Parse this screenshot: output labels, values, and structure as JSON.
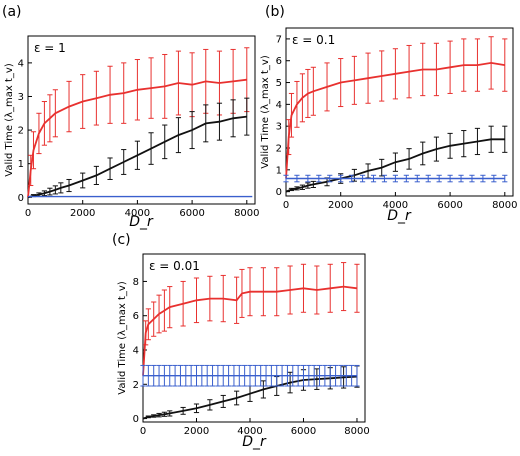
{
  "chart_data": [
    {
      "panel_label": "(a)",
      "type": "line",
      "annotation": "ε = 1",
      "xlabel": "D_r",
      "ylabel": "Valid Time (λ_max t_v)",
      "xlim": [
        0,
        8300
      ],
      "ylim": [
        -0.2,
        4.8
      ],
      "xticks": [
        0,
        2000,
        4000,
        6000,
        8000
      ],
      "yticks": [
        0,
        1,
        2,
        3,
        4
      ],
      "series": [
        {
          "color": "#e8312f",
          "x": [
            0,
            100,
            200,
            400,
            600,
            800,
            1000,
            1500,
            2000,
            2500,
            3000,
            3500,
            4000,
            4500,
            5000,
            5500,
            6000,
            6500,
            7000,
            7500,
            8000
          ],
          "y": [
            0,
            0.8,
            1.4,
            1.9,
            2.2,
            2.35,
            2.5,
            2.7,
            2.85,
            2.95,
            3.05,
            3.1,
            3.2,
            3.25,
            3.3,
            3.4,
            3.35,
            3.45,
            3.4,
            3.45,
            3.5
          ],
          "err": [
            0,
            0.45,
            0.55,
            0.6,
            0.65,
            0.7,
            0.7,
            0.75,
            0.8,
            0.8,
            0.85,
            0.9,
            0.9,
            0.9,
            0.95,
            0.95,
            0.95,
            0.95,
            0.95,
            0.95,
            0.95
          ]
        },
        {
          "color": "#111111",
          "x": [
            0,
            200,
            400,
            600,
            800,
            1000,
            1200,
            1500,
            2000,
            2500,
            3000,
            3500,
            4000,
            4500,
            5000,
            5500,
            6000,
            6500,
            7000,
            7500,
            8000
          ],
          "y": [
            0,
            0.05,
            0.08,
            0.12,
            0.17,
            0.22,
            0.28,
            0.35,
            0.5,
            0.65,
            0.85,
            1.05,
            1.25,
            1.45,
            1.65,
            1.85,
            2.0,
            2.2,
            2.25,
            2.35,
            2.4
          ],
          "err": [
            0,
            0.03,
            0.05,
            0.07,
            0.1,
            0.12,
            0.15,
            0.18,
            0.22,
            0.27,
            0.32,
            0.37,
            0.42,
            0.47,
            0.5,
            0.52,
            0.55,
            0.55,
            0.55,
            0.55,
            0.55
          ]
        },
        {
          "color": "#3a5fcd",
          "x": [
            0,
            8200
          ],
          "y": [
            0.02,
            0.02
          ],
          "err": [
            0,
            0
          ]
        }
      ]
    },
    {
      "panel_label": "(b)",
      "type": "line",
      "annotation": "ε = 0.1",
      "xlabel": "D_r",
      "ylabel": "Valid Time (λ_max t_v)",
      "xlim": [
        0,
        8300
      ],
      "ylim": [
        -0.2,
        7.5
      ],
      "xticks": [
        0,
        2000,
        4000,
        6000,
        8000
      ],
      "yticks": [
        0,
        1,
        2,
        3,
        4,
        5,
        6,
        7
      ],
      "series": [
        {
          "color": "#e8312f",
          "x": [
            0,
            100,
            200,
            400,
            600,
            800,
            1000,
            1500,
            2000,
            2500,
            3000,
            3500,
            4000,
            4500,
            5000,
            5500,
            6000,
            6500,
            7000,
            7500,
            8000
          ],
          "y": [
            0.6,
            2.5,
            3.5,
            4.0,
            4.3,
            4.5,
            4.6,
            4.8,
            5.0,
            5.1,
            5.2,
            5.3,
            5.4,
            5.5,
            5.6,
            5.6,
            5.7,
            5.8,
            5.8,
            5.9,
            5.8
          ],
          "err": [
            0,
            0.8,
            1.0,
            1.05,
            1.1,
            1.1,
            1.1,
            1.1,
            1.1,
            1.1,
            1.15,
            1.15,
            1.15,
            1.2,
            1.2,
            1.2,
            1.2,
            1.2,
            1.2,
            1.2,
            1.2
          ]
        },
        {
          "color": "#111111",
          "x": [
            0,
            200,
            400,
            600,
            800,
            1000,
            1500,
            2000,
            2500,
            3000,
            3500,
            4000,
            4500,
            5000,
            5500,
            6000,
            6500,
            7000,
            7500,
            8000
          ],
          "y": [
            0,
            0.1,
            0.15,
            0.2,
            0.28,
            0.33,
            0.45,
            0.6,
            0.75,
            0.95,
            1.1,
            1.35,
            1.5,
            1.75,
            1.95,
            2.1,
            2.2,
            2.3,
            2.4,
            2.4
          ],
          "err": [
            0,
            0.05,
            0.07,
            0.1,
            0.12,
            0.14,
            0.18,
            0.22,
            0.27,
            0.32,
            0.38,
            0.42,
            0.47,
            0.52,
            0.55,
            0.57,
            0.6,
            0.6,
            0.6,
            0.6
          ]
        },
        {
          "color": "#3a5fcd",
          "x": [
            0,
            400,
            800,
            1200,
            1600,
            2000,
            2400,
            2800,
            3200,
            3600,
            4000,
            4400,
            4800,
            5200,
            5600,
            6000,
            6400,
            6800,
            7200,
            7600,
            8000
          ],
          "y": [
            0.6,
            0.6,
            0.6,
            0.6,
            0.6,
            0.6,
            0.6,
            0.6,
            0.6,
            0.6,
            0.6,
            0.6,
            0.6,
            0.6,
            0.6,
            0.6,
            0.6,
            0.6,
            0.6,
            0.6,
            0.6
          ],
          "err": [
            0.15,
            0.15,
            0.15,
            0.15,
            0.15,
            0.15,
            0.15,
            0.15,
            0.15,
            0.15,
            0.15,
            0.15,
            0.15,
            0.15,
            0.15,
            0.15,
            0.15,
            0.15,
            0.15,
            0.15,
            0.15
          ]
        }
      ]
    },
    {
      "panel_label": "(c)",
      "type": "line",
      "annotation": "ε = 0.01",
      "xlabel": "D_r",
      "ylabel": "Valid Time (λ_max t_v)",
      "xlim": [
        0,
        8300
      ],
      "ylim": [
        -0.2,
        9.6
      ],
      "xticks": [
        0,
        2000,
        4000,
        6000,
        8000
      ],
      "yticks": [
        0,
        2,
        4,
        6,
        8
      ],
      "series": [
        {
          "color": "#e8312f",
          "x": [
            0,
            100,
            200,
            400,
            600,
            800,
            1000,
            1500,
            2000,
            2500,
            3000,
            3500,
            3700,
            4000,
            4500,
            5000,
            5500,
            6000,
            6500,
            7000,
            7500,
            8000
          ],
          "y": [
            2.5,
            5.0,
            5.5,
            5.8,
            6.1,
            6.3,
            6.5,
            6.7,
            6.9,
            7.0,
            7.0,
            6.9,
            7.3,
            7.4,
            7.4,
            7.4,
            7.5,
            7.6,
            7.5,
            7.6,
            7.7,
            7.6
          ],
          "err": [
            0,
            0.7,
            0.9,
            1.0,
            1.1,
            1.2,
            1.2,
            1.3,
            1.3,
            1.3,
            1.35,
            1.35,
            1.4,
            1.4,
            1.4,
            1.4,
            1.4,
            1.4,
            1.4,
            1.4,
            1.4,
            1.4
          ]
        },
        {
          "color": "#111111",
          "x": [
            0,
            200,
            400,
            600,
            800,
            1000,
            1500,
            2000,
            2500,
            3000,
            3500,
            4000,
            4500,
            5000,
            5500,
            6000,
            6500,
            7000,
            7500,
            8000
          ],
          "y": [
            0,
            0.1,
            0.15,
            0.2,
            0.25,
            0.3,
            0.45,
            0.6,
            0.8,
            1.0,
            1.2,
            1.45,
            1.7,
            1.9,
            2.1,
            2.25,
            2.3,
            2.35,
            2.4,
            2.45
          ],
          "err": [
            0,
            0.05,
            0.07,
            0.1,
            0.12,
            0.15,
            0.2,
            0.25,
            0.3,
            0.35,
            0.4,
            0.45,
            0.5,
            0.55,
            0.6,
            0.6,
            0.6,
            0.62,
            0.62,
            0.62
          ]
        },
        {
          "color": "#3a5fcd",
          "x": [
            0,
            200,
            400,
            600,
            800,
            1000,
            1200,
            1400,
            1600,
            1800,
            2000,
            2200,
            2400,
            2600,
            2800,
            3000,
            3200,
            3400,
            3600,
            3800,
            4000,
            4200,
            4400,
            4600,
            4800,
            5000,
            5200,
            5400,
            5600,
            5800,
            6000,
            6200,
            6400,
            6600,
            6800,
            7000,
            7200,
            7400,
            7600,
            7800,
            8000
          ],
          "y": [
            2.5,
            2.5,
            2.5,
            2.5,
            2.5,
            2.5,
            2.5,
            2.5,
            2.5,
            2.5,
            2.5,
            2.5,
            2.5,
            2.5,
            2.5,
            2.5,
            2.5,
            2.5,
            2.5,
            2.5,
            2.5,
            2.5,
            2.5,
            2.5,
            2.5,
            2.5,
            2.5,
            2.5,
            2.5,
            2.5,
            2.5,
            2.5,
            2.5,
            2.5,
            2.5,
            2.5,
            2.5,
            2.5,
            2.5,
            2.5,
            2.5
          ],
          "err": [
            0.6,
            0.6,
            0.6,
            0.6,
            0.6,
            0.6,
            0.6,
            0.6,
            0.6,
            0.6,
            0.6,
            0.6,
            0.6,
            0.6,
            0.6,
            0.6,
            0.6,
            0.6,
            0.6,
            0.6,
            0.6,
            0.6,
            0.6,
            0.6,
            0.6,
            0.6,
            0.6,
            0.6,
            0.6,
            0.6,
            0.6,
            0.6,
            0.6,
            0.6,
            0.6,
            0.6,
            0.6,
            0.6,
            0.6,
            0.6,
            0.6
          ]
        }
      ]
    }
  ]
}
